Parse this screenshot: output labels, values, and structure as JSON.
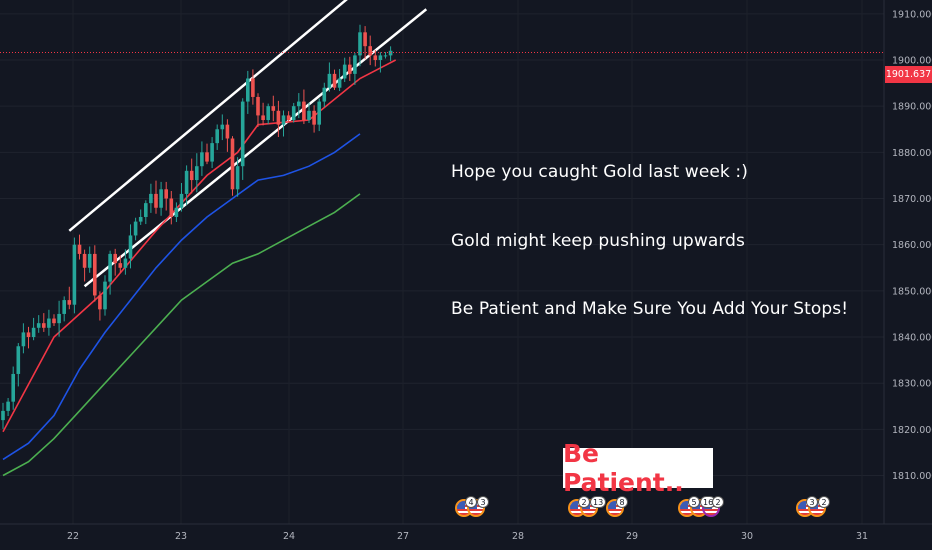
{
  "chart_data": {
    "type": "candlestick",
    "symbol": "Gold",
    "x_ticks": [
      "22",
      "23",
      "24",
      "27",
      "28",
      "29",
      "30",
      "31"
    ],
    "y_ticks": [
      1810,
      1820,
      1830,
      1840,
      1850,
      1860,
      1870,
      1880,
      1890,
      1900,
      1910
    ],
    "y_tick_labels": [
      "1810.000",
      "1820.000",
      "1830.000",
      "1840.000",
      "1850.000",
      "1860.000",
      "1870.000",
      "1880.000",
      "1890.000",
      "1900.000",
      "1910.000"
    ],
    "ylim": [
      1799.5,
      1913
    ],
    "last_price": "1901.637",
    "closes": [
      1824,
      1826,
      1832,
      1838,
      1841,
      1840,
      1842,
      1843,
      1842,
      1844,
      1843,
      1845,
      1848,
      1847,
      1860,
      1858,
      1855,
      1858,
      1849,
      1846,
      1852,
      1858,
      1856,
      1855,
      1857,
      1862,
      1865,
      1866,
      1869,
      1871,
      1868,
      1872,
      1870,
      1866,
      1868,
      1871,
      1876,
      1874,
      1877,
      1880,
      1878,
      1882,
      1885,
      1886,
      1883,
      1872,
      1877,
      1891,
      1896,
      1892,
      1888,
      1887,
      1890,
      1889,
      1886,
      1888,
      1887,
      1890,
      1891,
      1887,
      1889,
      1886,
      1891,
      1894,
      1897,
      1894,
      1896,
      1899,
      1897,
      1901,
      1906,
      1903,
      1901,
      1900,
      1901,
      1901,
      1902
    ],
    "moving_averages": [
      {
        "color": "#f23645",
        "points": [
          [
            0,
            1819.5
          ],
          [
            10,
            1840
          ],
          [
            20,
            1850
          ],
          [
            30,
            1863
          ],
          [
            40,
            1875
          ],
          [
            46,
            1880
          ],
          [
            50,
            1886
          ],
          [
            60,
            1887
          ],
          [
            70,
            1896
          ],
          [
            77,
            1900
          ]
        ]
      },
      {
        "color": "#1e53e5",
        "points": [
          [
            0,
            1813.5
          ],
          [
            5,
            1817
          ],
          [
            10,
            1823
          ],
          [
            15,
            1833
          ],
          [
            20,
            1841
          ],
          [
            25,
            1848
          ],
          [
            30,
            1855
          ],
          [
            35,
            1861
          ],
          [
            40,
            1866
          ],
          [
            45,
            1870
          ],
          [
            50,
            1874
          ],
          [
            55,
            1875
          ],
          [
            60,
            1877
          ],
          [
            65,
            1880
          ],
          [
            70,
            1884
          ]
        ]
      },
      {
        "color": "#4caf50",
        "points": [
          [
            0,
            1810
          ],
          [
            5,
            1813
          ],
          [
            10,
            1818
          ],
          [
            15,
            1824
          ],
          [
            20,
            1830
          ],
          [
            25,
            1836
          ],
          [
            30,
            1842
          ],
          [
            35,
            1848
          ],
          [
            40,
            1852
          ],
          [
            45,
            1856
          ],
          [
            50,
            1858
          ],
          [
            55,
            1861
          ],
          [
            60,
            1864
          ],
          [
            65,
            1867
          ],
          [
            70,
            1871
          ]
        ]
      }
    ],
    "channel_lines": [
      {
        "from": [
          13,
          1863
        ],
        "to": [
          77,
          1922
        ]
      },
      {
        "from": [
          16,
          1851
        ],
        "to": [
          83,
          1911
        ]
      }
    ]
  },
  "notes": [
    "Hope you caught Gold last week :)",
    "Gold might keep pushing upwards",
    "Be Patient and Make Sure You Add Your Stops!"
  ],
  "callout": "Be Patient..",
  "events": [
    {
      "counts": [
        "4",
        "3"
      ]
    },
    {
      "counts": [
        "2",
        "13"
      ]
    },
    {
      "counts": [
        "8"
      ]
    },
    {
      "counts": [
        "5",
        "16",
        "2"
      ]
    },
    {
      "counts": [
        "3",
        "2"
      ]
    }
  ]
}
